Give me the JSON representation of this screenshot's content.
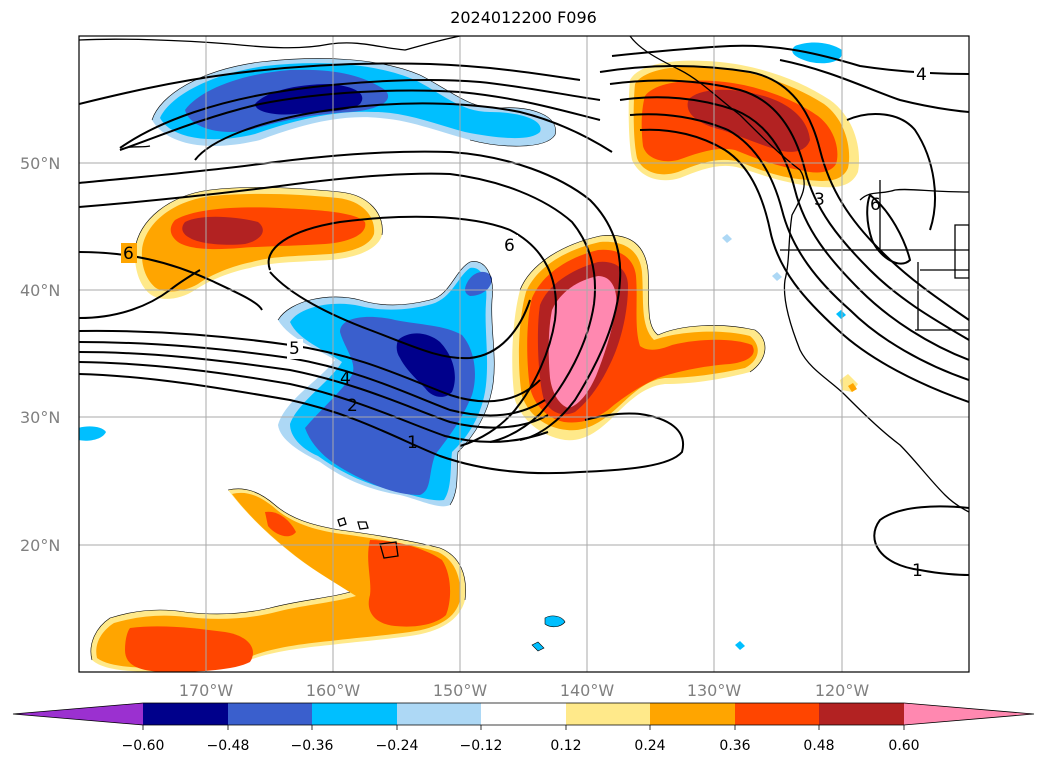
{
  "title": "2024012200 F096",
  "map": {
    "lat_labels": [
      "50°N",
      "40°N",
      "30°N",
      "20°N"
    ],
    "lon_labels": [
      "170°W",
      "160°W",
      "150°W",
      "140°W",
      "130°W",
      "120°W"
    ],
    "extent": {
      "lon": [
        -180,
        -110
      ],
      "lat": [
        10,
        60
      ]
    }
  },
  "contour_labels": [
    "6",
    "6",
    "5",
    "4",
    "2",
    "1",
    "4",
    "3",
    "6",
    "1"
  ],
  "colorbar": {
    "ticks": [
      "−0.60",
      "−0.48",
      "−0.36",
      "−0.24",
      "−0.12",
      "0.12",
      "0.24",
      "0.36",
      "0.48",
      "0.60"
    ],
    "colors": [
      "#9b30d0",
      "#00008b",
      "#3a5fcd",
      "#00bfff",
      "#add8f5",
      "#ffffff",
      "#ffe98a",
      "#ffa500",
      "#ff4500",
      "#b22222",
      "#ff88b0"
    ],
    "extend": "both"
  }
}
